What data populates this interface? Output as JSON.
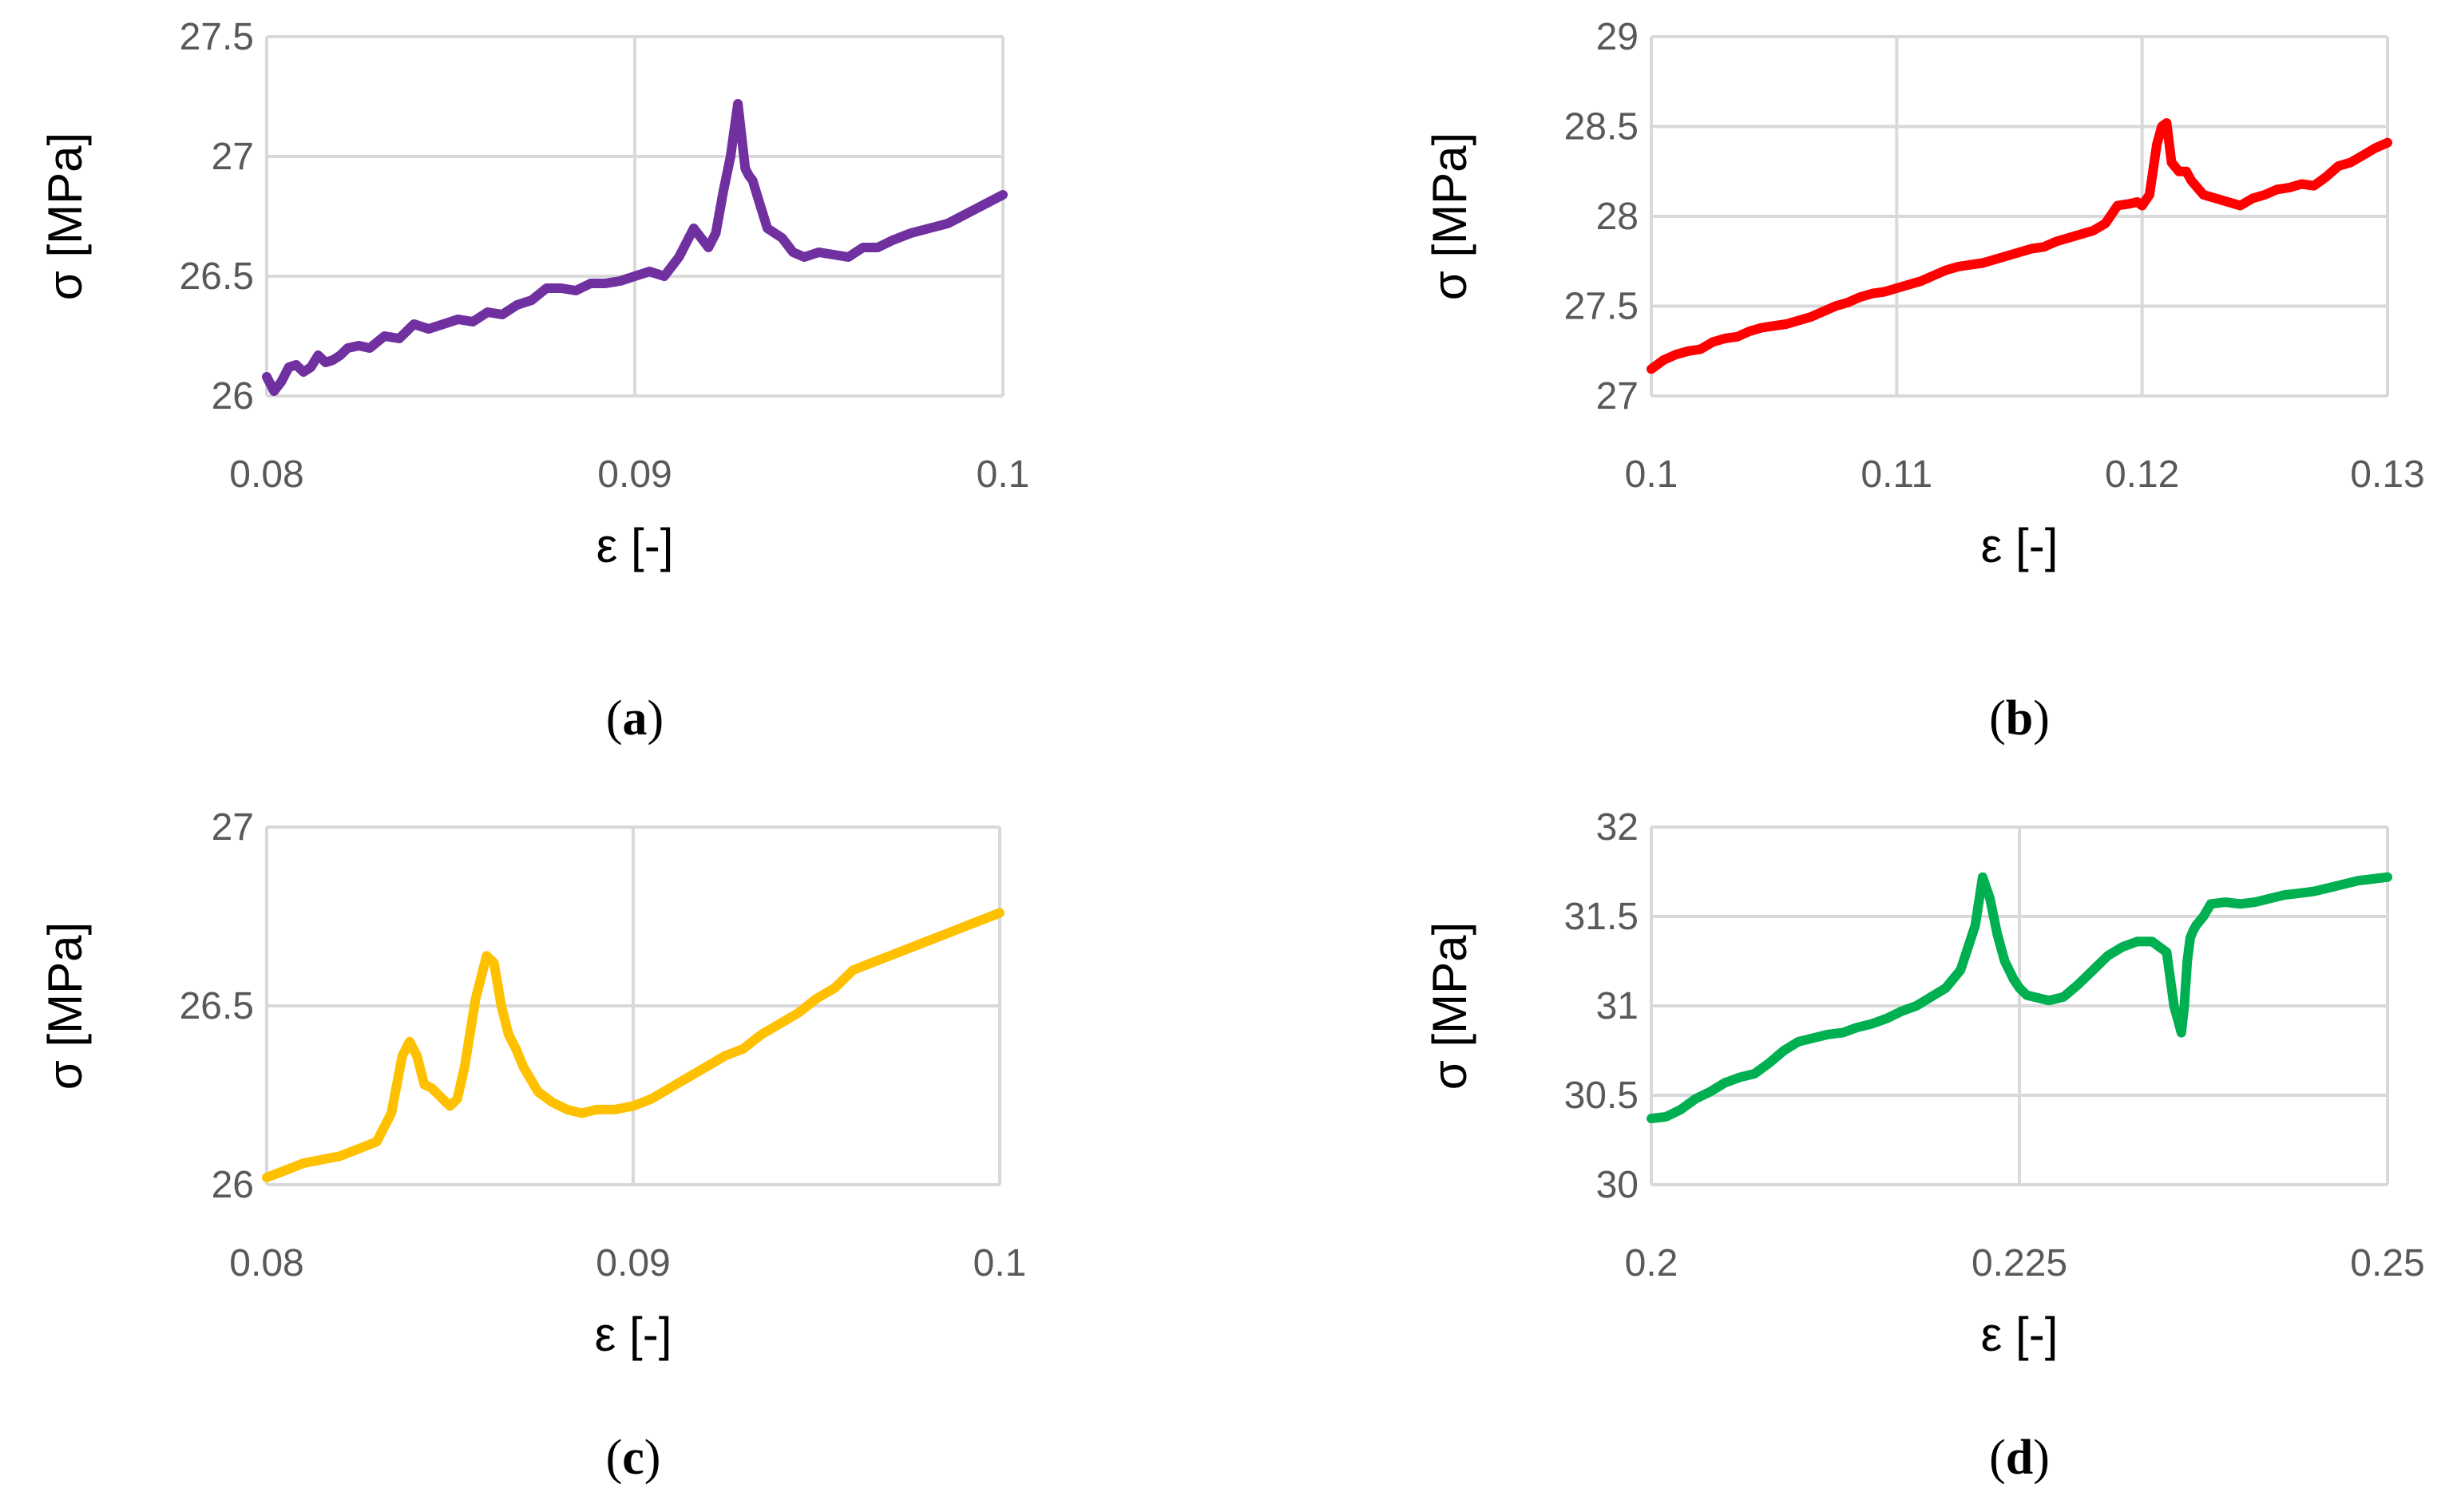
{
  "chart_data": [
    {
      "panel": "a",
      "type": "line",
      "xlabel": "ε [-]",
      "ylabel": "σ [MPa]",
      "caption": {
        "open": "(",
        "letter": "a",
        "close": ")"
      },
      "color": "#7030a0",
      "xlim": [
        0.08,
        0.1
      ],
      "ylim": [
        26,
        27.5
      ],
      "xticks": [
        0.08,
        0.09,
        0.1
      ],
      "xtick_labels": [
        "0.08",
        "0.09",
        "0.1"
      ],
      "yticks": [
        26,
        26.5,
        27,
        27.5
      ],
      "ytick_labels": [
        "26",
        "26.5",
        "27",
        "27.5"
      ],
      "x": [
        0.08,
        0.0802,
        0.0804,
        0.0806,
        0.0808,
        0.081,
        0.0812,
        0.0814,
        0.0816,
        0.0818,
        0.082,
        0.0822,
        0.0825,
        0.0828,
        0.0832,
        0.0836,
        0.084,
        0.0844,
        0.0848,
        0.0852,
        0.0856,
        0.086,
        0.0864,
        0.0868,
        0.0872,
        0.0876,
        0.088,
        0.0884,
        0.0888,
        0.0892,
        0.0896,
        0.09,
        0.0904,
        0.0908,
        0.0912,
        0.0916,
        0.092,
        0.0922,
        0.0924,
        0.0926,
        0.0928,
        0.093,
        0.0931,
        0.0932,
        0.0934,
        0.0936,
        0.0938,
        0.094,
        0.0943,
        0.0946,
        0.095,
        0.0954,
        0.0958,
        0.0962,
        0.0966,
        0.097,
        0.0975,
        0.098,
        0.0985,
        0.099,
        0.0995,
        0.1
      ],
      "y": [
        26.08,
        26.02,
        26.06,
        26.12,
        26.13,
        26.1,
        26.12,
        26.17,
        26.14,
        26.15,
        26.17,
        26.2,
        26.21,
        26.2,
        26.25,
        26.24,
        26.3,
        26.28,
        26.3,
        26.32,
        26.31,
        26.35,
        26.34,
        26.38,
        26.4,
        26.45,
        26.45,
        26.44,
        26.47,
        26.47,
        26.48,
        26.5,
        26.52,
        26.5,
        26.58,
        26.7,
        26.62,
        26.68,
        26.85,
        27.0,
        27.22,
        26.95,
        26.92,
        26.9,
        26.8,
        26.7,
        26.68,
        26.66,
        26.6,
        26.58,
        26.6,
        26.59,
        26.58,
        26.62,
        26.62,
        26.65,
        26.68,
        26.7,
        26.72,
        26.76,
        26.8,
        26.84
      ]
    },
    {
      "panel": "b",
      "type": "line",
      "xlabel": "ε [-]",
      "ylabel": "σ [MPa]",
      "caption": {
        "open": "(",
        "letter": "b",
        "close": ")"
      },
      "color": "#ff0000",
      "xlim": [
        0.1,
        0.13
      ],
      "ylim": [
        27,
        29
      ],
      "xticks": [
        0.1,
        0.11,
        0.12,
        0.13
      ],
      "xtick_labels": [
        "0.1",
        "0.11",
        "0.12",
        "0.13"
      ],
      "yticks": [
        27,
        27.5,
        28,
        28.5,
        29
      ],
      "ytick_labels": [
        "27",
        "27.5",
        "28",
        "28.5",
        "29"
      ],
      "x": [
        0.1,
        0.1005,
        0.101,
        0.1015,
        0.102,
        0.1025,
        0.103,
        0.1035,
        0.104,
        0.1045,
        0.105,
        0.1055,
        0.106,
        0.1065,
        0.107,
        0.1075,
        0.108,
        0.1085,
        0.109,
        0.1095,
        0.11,
        0.1105,
        0.111,
        0.1115,
        0.112,
        0.1125,
        0.113,
        0.1135,
        0.114,
        0.1145,
        0.115,
        0.1155,
        0.116,
        0.1165,
        0.117,
        0.1175,
        0.118,
        0.1185,
        0.119,
        0.1195,
        0.1198,
        0.12,
        0.1203,
        0.1206,
        0.1208,
        0.121,
        0.1212,
        0.1215,
        0.1218,
        0.122,
        0.1225,
        0.123,
        0.1235,
        0.124,
        0.1245,
        0.125,
        0.1255,
        0.126,
        0.1265,
        0.127,
        0.1275,
        0.128,
        0.1285,
        0.129,
        0.1295,
        0.13
      ],
      "y": [
        27.15,
        27.2,
        27.23,
        27.25,
        27.26,
        27.3,
        27.32,
        27.33,
        27.36,
        27.38,
        27.39,
        27.4,
        27.42,
        27.44,
        27.47,
        27.5,
        27.52,
        27.55,
        27.57,
        27.58,
        27.6,
        27.62,
        27.64,
        27.67,
        27.7,
        27.72,
        27.73,
        27.74,
        27.76,
        27.78,
        27.8,
        27.82,
        27.83,
        27.86,
        27.88,
        27.9,
        27.92,
        27.96,
        28.06,
        28.07,
        28.08,
        28.06,
        28.12,
        28.4,
        28.5,
        28.52,
        28.3,
        28.25,
        28.25,
        28.2,
        28.12,
        28.1,
        28.08,
        28.06,
        28.1,
        28.12,
        28.15,
        28.16,
        28.18,
        28.17,
        28.22,
        28.28,
        28.3,
        28.34,
        28.38,
        28.41
      ]
    },
    {
      "panel": "c",
      "type": "line",
      "xlabel": "ε [-]",
      "ylabel": "σ [MPa]",
      "caption": {
        "open": "(",
        "letter": "c",
        "close": ")"
      },
      "color": "#ffc000",
      "xlim": [
        0.08,
        0.1
      ],
      "ylim": [
        26,
        27
      ],
      "xticks": [
        0.08,
        0.09,
        0.1
      ],
      "xtick_labels": [
        "0.08",
        "0.09",
        "0.1"
      ],
      "yticks": [
        26,
        26.5,
        27
      ],
      "ytick_labels": [
        "26",
        "26.5",
        "27"
      ],
      "x": [
        0.08,
        0.0805,
        0.081,
        0.0815,
        0.082,
        0.0825,
        0.083,
        0.0834,
        0.0837,
        0.0839,
        0.0841,
        0.0843,
        0.0845,
        0.0848,
        0.085,
        0.0852,
        0.0854,
        0.0857,
        0.086,
        0.0862,
        0.0864,
        0.0866,
        0.0868,
        0.087,
        0.0874,
        0.0878,
        0.0882,
        0.0886,
        0.089,
        0.0895,
        0.09,
        0.0905,
        0.091,
        0.0915,
        0.092,
        0.0925,
        0.093,
        0.0935,
        0.094,
        0.0945,
        0.095,
        0.0955,
        0.096,
        0.0965,
        0.097,
        0.0975,
        0.098,
        0.0985,
        0.099,
        0.0995,
        0.1
      ],
      "y": [
        26.02,
        26.04,
        26.06,
        26.07,
        26.08,
        26.1,
        26.12,
        26.2,
        26.36,
        26.4,
        26.36,
        26.28,
        26.27,
        26.24,
        26.22,
        26.24,
        26.33,
        26.52,
        26.64,
        26.62,
        26.5,
        26.42,
        26.38,
        26.33,
        26.26,
        26.23,
        26.21,
        26.2,
        26.21,
        26.21,
        26.22,
        26.24,
        26.27,
        26.3,
        26.33,
        26.36,
        26.38,
        26.42,
        26.45,
        26.48,
        26.52,
        26.55,
        26.6,
        26.62,
        26.64,
        26.66,
        26.68,
        26.7,
        26.72,
        26.74,
        26.76
      ]
    },
    {
      "panel": "d",
      "type": "line",
      "xlabel": "ε [-]",
      "ylabel": "σ [MPa]",
      "caption": {
        "open": "(",
        "letter": "d",
        "close": ")"
      },
      "color": "#00b050",
      "xlim": [
        0.2,
        0.25
      ],
      "ylim": [
        30,
        32
      ],
      "xticks": [
        0.2,
        0.225,
        0.25
      ],
      "xtick_labels": [
        "0.2",
        "0.225",
        "0.25"
      ],
      "yticks": [
        30,
        30.5,
        31,
        31.5,
        32
      ],
      "ytick_labels": [
        "30",
        "30.5",
        "31",
        "31.5",
        "32"
      ],
      "x": [
        0.2,
        0.201,
        0.202,
        0.203,
        0.204,
        0.205,
        0.206,
        0.207,
        0.208,
        0.209,
        0.21,
        0.211,
        0.212,
        0.213,
        0.214,
        0.215,
        0.216,
        0.217,
        0.218,
        0.219,
        0.22,
        0.221,
        0.222,
        0.2225,
        0.223,
        0.2235,
        0.224,
        0.2243,
        0.2246,
        0.225,
        0.2255,
        0.226,
        0.227,
        0.228,
        0.229,
        0.23,
        0.231,
        0.232,
        0.233,
        0.234,
        0.235,
        0.2355,
        0.236,
        0.2362,
        0.2364,
        0.2366,
        0.2368,
        0.237,
        0.2375,
        0.238,
        0.239,
        0.24,
        0.241,
        0.242,
        0.243,
        0.244,
        0.245,
        0.246,
        0.247,
        0.248,
        0.249,
        0.25
      ],
      "y": [
        30.37,
        30.38,
        30.42,
        30.48,
        30.52,
        30.57,
        30.6,
        30.62,
        30.68,
        30.75,
        30.8,
        30.82,
        30.84,
        30.85,
        30.88,
        30.9,
        30.93,
        30.97,
        31.0,
        31.05,
        31.1,
        31.2,
        31.45,
        31.72,
        31.6,
        31.4,
        31.25,
        31.2,
        31.15,
        31.1,
        31.06,
        31.05,
        31.03,
        31.05,
        31.12,
        31.2,
        31.28,
        31.33,
        31.36,
        31.36,
        31.3,
        31.0,
        30.85,
        31.0,
        31.25,
        31.38,
        31.42,
        31.45,
        31.5,
        31.57,
        31.58,
        31.57,
        31.58,
        31.6,
        31.62,
        31.63,
        31.64,
        31.66,
        31.68,
        31.7,
        31.71,
        31.72
      ]
    }
  ]
}
